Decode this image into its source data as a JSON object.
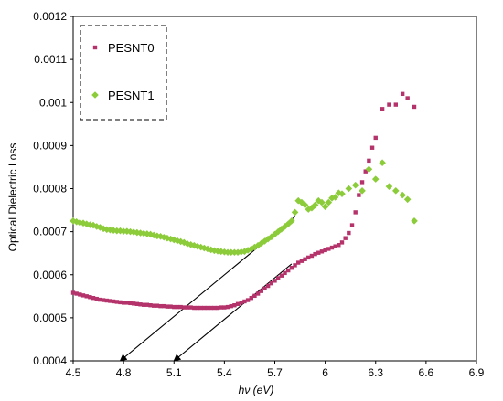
{
  "chart_data": {
    "type": "scatter",
    "xlabel": "hν (eV)",
    "ylabel": "Optical Dielectric Loss",
    "xlim": [
      4.5,
      6.9
    ],
    "ylim": [
      0.0004,
      0.0012
    ],
    "x_ticks": [
      "4.5",
      "4.8",
      "5.1",
      "5.4",
      "5.7",
      "6",
      "6.3",
      "6.6",
      "6.9"
    ],
    "y_ticks": [
      "0.0004",
      "0.0005",
      "0.0006",
      "0.0007",
      "0.0008",
      "0.0009",
      "0.001",
      "0.0011",
      "0.0012"
    ],
    "grid": false,
    "legend_position": "top-left",
    "series": [
      {
        "name": "PESNT0",
        "color": "#b5336b",
        "marker": "square",
        "points": [
          [
            4.5,
            0.000558
          ],
          [
            4.52,
            0.000556
          ],
          [
            4.54,
            0.000554
          ],
          [
            4.56,
            0.000552
          ],
          [
            4.58,
            0.00055
          ],
          [
            4.6,
            0.000548
          ],
          [
            4.62,
            0.000546
          ],
          [
            4.64,
            0.000544
          ],
          [
            4.66,
            0.000542
          ],
          [
            4.68,
            0.000541
          ],
          [
            4.7,
            0.00054
          ],
          [
            4.72,
            0.000539
          ],
          [
            4.74,
            0.000538
          ],
          [
            4.76,
            0.000537
          ],
          [
            4.78,
            0.000536
          ],
          [
            4.8,
            0.000535
          ],
          [
            4.82,
            0.000535
          ],
          [
            4.84,
            0.000534
          ],
          [
            4.86,
            0.000533
          ],
          [
            4.88,
            0.000532
          ],
          [
            4.9,
            0.000531
          ],
          [
            4.92,
            0.00053
          ],
          [
            4.94,
            0.00053
          ],
          [
            4.96,
            0.000529
          ],
          [
            4.98,
            0.000528
          ],
          [
            5.0,
            0.000528
          ],
          [
            5.02,
            0.000527
          ],
          [
            5.04,
            0.000527
          ],
          [
            5.06,
            0.000526
          ],
          [
            5.08,
            0.000526
          ],
          [
            5.1,
            0.000525
          ],
          [
            5.12,
            0.000525
          ],
          [
            5.14,
            0.000525
          ],
          [
            5.16,
            0.000524
          ],
          [
            5.18,
            0.000524
          ],
          [
            5.2,
            0.000524
          ],
          [
            5.22,
            0.000523
          ],
          [
            5.24,
            0.000523
          ],
          [
            5.26,
            0.000523
          ],
          [
            5.28,
            0.000523
          ],
          [
            5.3,
            0.000523
          ],
          [
            5.32,
            0.000523
          ],
          [
            5.34,
            0.000523
          ],
          [
            5.36,
            0.000523
          ],
          [
            5.38,
            0.000524
          ],
          [
            5.4,
            0.000524
          ],
          [
            5.42,
            0.000525
          ],
          [
            5.44,
            0.000527
          ],
          [
            5.46,
            0.000529
          ],
          [
            5.48,
            0.000532
          ],
          [
            5.5,
            0.000535
          ],
          [
            5.52,
            0.000538
          ],
          [
            5.54,
            0.000541
          ],
          [
            5.56,
            0.000546
          ],
          [
            5.58,
            0.000551
          ],
          [
            5.6,
            0.000556
          ],
          [
            5.62,
            0.000562
          ],
          [
            5.64,
            0.000568
          ],
          [
            5.66,
            0.000574
          ],
          [
            5.68,
            0.00058
          ],
          [
            5.7,
            0.000586
          ],
          [
            5.72,
            0.000592
          ],
          [
            5.74,
            0.000598
          ],
          [
            5.76,
            0.000604
          ],
          [
            5.78,
            0.00061
          ],
          [
            5.8,
            0.000616
          ],
          [
            5.82,
            0.000622
          ],
          [
            5.84,
            0.000628
          ],
          [
            5.86,
            0.000632
          ],
          [
            5.88,
            0.000636
          ],
          [
            5.9,
            0.00064
          ],
          [
            5.92,
            0.000644
          ],
          [
            5.94,
            0.000648
          ],
          [
            5.96,
            0.000651
          ],
          [
            5.98,
            0.000654
          ],
          [
            6.0,
            0.000657
          ],
          [
            6.02,
            0.00066
          ],
          [
            6.04,
            0.000663
          ],
          [
            6.06,
            0.000666
          ],
          [
            6.08,
            0.000669
          ],
          [
            6.1,
            0.000675
          ],
          [
            6.12,
            0.000685
          ],
          [
            6.14,
            0.000697
          ],
          [
            6.16,
            0.000715
          ],
          [
            6.18,
            0.000745
          ],
          [
            6.2,
            0.000785
          ],
          [
            6.22,
            0.000815
          ],
          [
            6.24,
            0.00084
          ],
          [
            6.26,
            0.000865
          ],
          [
            6.28,
            0.000895
          ],
          [
            6.3,
            0.000918
          ],
          [
            6.34,
            0.000985
          ],
          [
            6.38,
            0.000995
          ],
          [
            6.42,
            0.000995
          ],
          [
            6.46,
            0.00102
          ],
          [
            6.49,
            0.00101
          ],
          [
            6.53,
            0.00099
          ]
        ]
      },
      {
        "name": "PESNT1",
        "color": "#8ccc3a",
        "marker": "diamond",
        "points": [
          [
            4.5,
            0.000725
          ],
          [
            4.52,
            0.000723
          ],
          [
            4.54,
            0.000721
          ],
          [
            4.56,
            0.00072
          ],
          [
            4.58,
            0.000718
          ],
          [
            4.6,
            0.000716
          ],
          [
            4.62,
            0.000715
          ],
          [
            4.64,
            0.000712
          ],
          [
            4.66,
            0.00071
          ],
          [
            4.68,
            0.000707
          ],
          [
            4.7,
            0.000705
          ],
          [
            4.72,
            0.000704
          ],
          [
            4.74,
            0.000703
          ],
          [
            4.76,
            0.000702
          ],
          [
            4.78,
            0.000702
          ],
          [
            4.8,
            0.000701
          ],
          [
            4.82,
            0.000701
          ],
          [
            4.84,
            0.0007
          ],
          [
            4.86,
            0.000699
          ],
          [
            4.88,
            0.000698
          ],
          [
            4.9,
            0.000697
          ],
          [
            4.92,
            0.000696
          ],
          [
            4.94,
            0.000695
          ],
          [
            4.96,
            0.000694
          ],
          [
            4.98,
            0.000692
          ],
          [
            5.0,
            0.00069
          ],
          [
            5.02,
            0.000689
          ],
          [
            5.04,
            0.000687
          ],
          [
            5.06,
            0.000685
          ],
          [
            5.08,
            0.000683
          ],
          [
            5.1,
            0.000681
          ],
          [
            5.12,
            0.000679
          ],
          [
            5.14,
            0.000677
          ],
          [
            5.16,
            0.000675
          ],
          [
            5.18,
            0.000672
          ],
          [
            5.2,
            0.00067
          ],
          [
            5.22,
            0.000668
          ],
          [
            5.24,
            0.000666
          ],
          [
            5.26,
            0.000664
          ],
          [
            5.28,
            0.000662
          ],
          [
            5.3,
            0.00066
          ],
          [
            5.32,
            0.000658
          ],
          [
            5.34,
            0.000656
          ],
          [
            5.36,
            0.000655
          ],
          [
            5.38,
            0.000654
          ],
          [
            5.4,
            0.000653
          ],
          [
            5.42,
            0.000652
          ],
          [
            5.44,
            0.000652
          ],
          [
            5.46,
            0.000652
          ],
          [
            5.48,
            0.000652
          ],
          [
            5.5,
            0.000653
          ],
          [
            5.52,
            0.000654
          ],
          [
            5.54,
            0.000657
          ],
          [
            5.56,
            0.00066
          ],
          [
            5.58,
            0.000664
          ],
          [
            5.6,
            0.000668
          ],
          [
            5.62,
            0.000673
          ],
          [
            5.64,
            0.000678
          ],
          [
            5.66,
            0.000683
          ],
          [
            5.68,
            0.000688
          ],
          [
            5.7,
            0.000694
          ],
          [
            5.72,
            0.0007
          ],
          [
            5.74,
            0.000706
          ],
          [
            5.76,
            0.000712
          ],
          [
            5.78,
            0.000718
          ],
          [
            5.8,
            0.000725
          ],
          [
            5.82,
            0.000745
          ],
          [
            5.84,
            0.000772
          ],
          [
            5.86,
            0.000768
          ],
          [
            5.88,
            0.000762
          ],
          [
            5.9,
            0.000752
          ],
          [
            5.92,
            0.000755
          ],
          [
            5.94,
            0.000762
          ],
          [
            5.96,
            0.000772
          ],
          [
            5.98,
            0.000768
          ],
          [
            6.0,
            0.000758
          ],
          [
            6.02,
            0.000768
          ],
          [
            6.04,
            0.000778
          ],
          [
            6.06,
            0.00078
          ],
          [
            6.08,
            0.00079
          ],
          [
            6.1,
            0.000788
          ],
          [
            6.14,
            0.0008
          ],
          [
            6.18,
            0.000808
          ],
          [
            6.22,
            0.000795
          ],
          [
            6.26,
            0.000845
          ],
          [
            6.3,
            0.000822
          ],
          [
            6.34,
            0.00086
          ],
          [
            6.38,
            0.000805
          ],
          [
            6.42,
            0.000795
          ],
          [
            6.46,
            0.000785
          ],
          [
            6.49,
            0.000775
          ],
          [
            6.53,
            0.000725
          ]
        ]
      }
    ],
    "annotations": [
      {
        "type": "arrow",
        "from": [
          5.82,
          0.000735
        ],
        "to": [
          4.78,
          0.0004
        ]
      },
      {
        "type": "arrow",
        "from": [
          5.8,
          0.000625
        ],
        "to": [
          5.1,
          0.0004
        ]
      }
    ]
  }
}
